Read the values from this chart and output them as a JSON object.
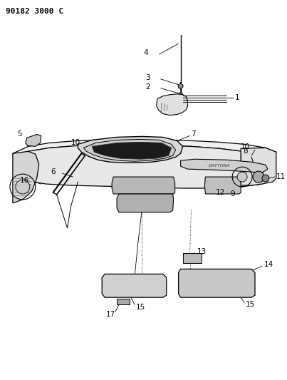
{
  "title": "90182 3000 C",
  "bg_color": "#ffffff",
  "line_color": "#000000",
  "figsize": [
    4.03,
    5.33
  ],
  "dpi": 100
}
